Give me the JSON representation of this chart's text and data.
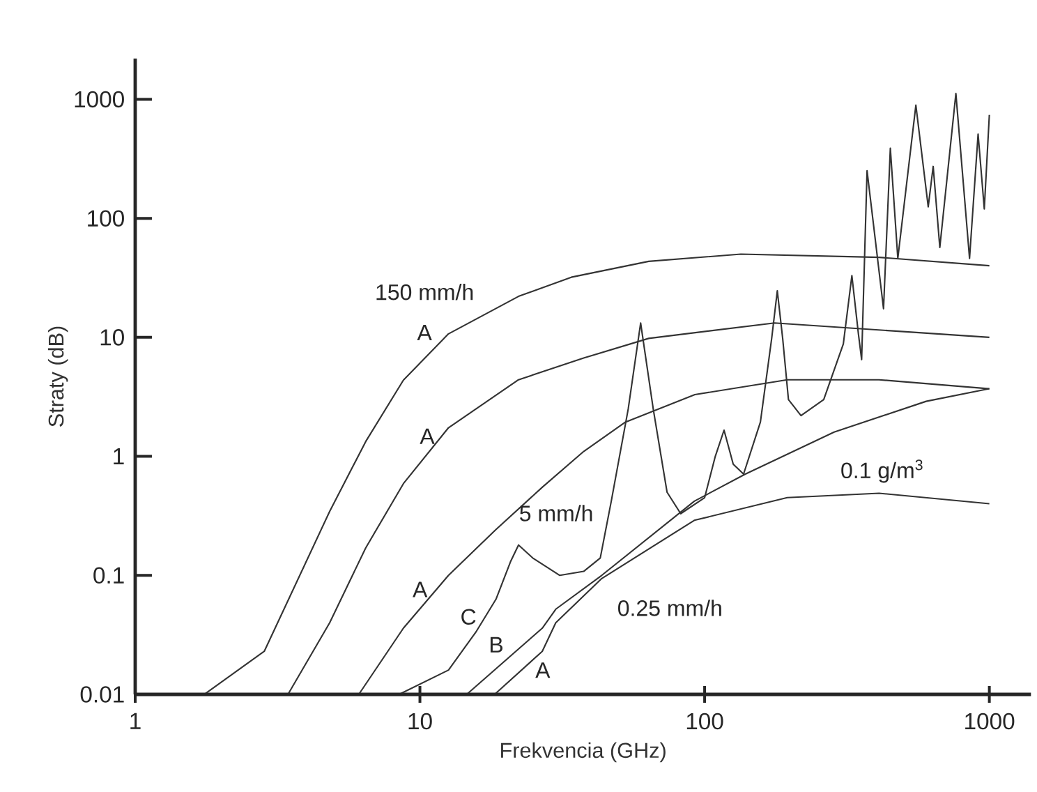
{
  "chart_data": {
    "type": "line",
    "xlabel": "Frekvencia (GHz)",
    "ylabel": "Straty (dB)",
    "log": "xy",
    "grid": false,
    "marker": "none",
    "line_style": "solid",
    "xlim": [
      1,
      1400
    ],
    "ylim": [
      0.01,
      2200
    ],
    "xticks": [
      1,
      10,
      100,
      1000
    ],
    "yticks": [
      0.01,
      0.1,
      1,
      10,
      100,
      1000
    ],
    "series": [
      {
        "color": "#333333",
        "x": [
          1.75,
          2.84,
          4.82,
          6.45,
          8.75,
          12.6,
          22.2,
          34,
          63.6,
          134,
          410,
          1000
        ],
        "values": [
          0.01,
          0.023,
          0.345,
          1.33,
          4.37,
          10.7,
          22.1,
          32,
          43.5,
          50,
          47,
          40
        ]
      },
      {
        "color": "#333333",
        "x": [
          3.44,
          4.82,
          6.45,
          8.75,
          12.6,
          22.2,
          37.6,
          63.6,
          176,
          1000
        ],
        "values": [
          0.01,
          0.04,
          0.17,
          0.59,
          1.74,
          4.4,
          6.7,
          9.8,
          13.2,
          10
        ]
      },
      {
        "color": "#333333",
        "x": [
          6.1,
          8.75,
          12.6,
          18.5,
          26.9,
          37.6,
          52.7,
          92.4,
          195,
          410,
          1000
        ],
        "values": [
          0.01,
          0.036,
          0.1,
          0.243,
          0.55,
          1.1,
          1.94,
          3.3,
          4.4,
          4.4,
          3.7
        ]
      },
      {
        "color": "#333333",
        "x": [
          8.45,
          12.6,
          15.8,
          18.5,
          20.8,
          22.2,
          24.9,
          31,
          37.6,
          43,
          47,
          53.9,
          59.6,
          66,
          73.8,
          82.4,
          100,
          109,
          117,
          126,
          137,
          157,
          172,
          180,
          188,
          197,
          218,
          262,
          307,
          329,
          347,
          356,
          372,
          425,
          449,
          477,
          552,
          610,
          635,
          670,
          763,
          852,
          913,
          960,
          1000
        ],
        "values": [
          0.01,
          0.016,
          0.034,
          0.063,
          0.13,
          0.18,
          0.14,
          0.1,
          0.108,
          0.14,
          0.42,
          2.5,
          13.2,
          2.5,
          0.5,
          0.33,
          0.45,
          1.0,
          1.66,
          0.86,
          0.71,
          1.94,
          9.8,
          24.6,
          9.8,
          3.0,
          2.2,
          3.0,
          8.8,
          33,
          10.6,
          6.5,
          251,
          17.4,
          388,
          46,
          894,
          125,
          273,
          57,
          1120,
          46,
          510,
          120,
          740
        ]
      },
      {
        "color": "#333333",
        "x": [
          14.6,
          26.9,
          30,
          43.5,
          92,
          139,
          285,
          600,
          1000
        ],
        "values": [
          0.01,
          0.036,
          0.052,
          0.1,
          0.42,
          0.71,
          1.6,
          2.9,
          3.7
        ]
      },
      {
        "color": "#333333",
        "x": [
          18.3,
          26.9,
          30,
          43.5,
          92,
          195,
          410,
          1000
        ],
        "values": [
          0.01,
          0.023,
          0.04,
          0.094,
          0.29,
          0.45,
          0.49,
          0.4
        ]
      }
    ],
    "annotations": [
      "150 mm/h",
      "A",
      "A",
      "A",
      "5 mm/h",
      "C",
      "B",
      "0.25 mm/h",
      "A",
      "0.1 g/m$^{3}$"
    ]
  }
}
